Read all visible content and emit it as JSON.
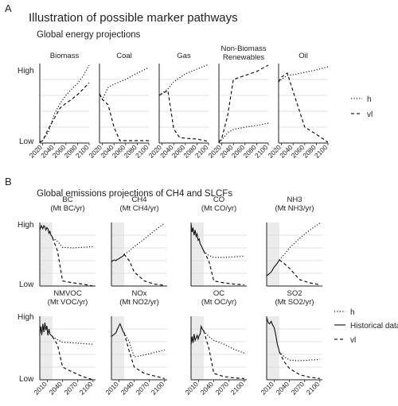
{
  "panel_a": {
    "letter": "A",
    "title": "Illustration of possible marker pathways",
    "subtitle": "Global energy projections",
    "y_high": "High",
    "y_low": "Low",
    "x_ticks": [
      "2020",
      "2040",
      "2060",
      "2080",
      "2100"
    ]
  },
  "panel_b": {
    "letter": "B",
    "subtitle": "Global emissions projections of CH4 and SLCFs",
    "y_high": "High",
    "y_low": "Low",
    "x_ticks": [
      "2010",
      "2040",
      "2070",
      "2100"
    ]
  },
  "legend_a": {
    "items": [
      {
        "label": "h",
        "style": "dotted"
      },
      {
        "label": "vl",
        "style": "dashed"
      }
    ]
  },
  "legend_b": {
    "items": [
      {
        "label": "h",
        "style": "dotted"
      },
      {
        "label": "Historical data",
        "style": "solid"
      },
      {
        "label": "vl",
        "style": "dashed"
      }
    ]
  },
  "chart_data": [
    {
      "type": "line",
      "title": "Biomass",
      "ylabel": "",
      "x_range": [
        2015,
        2100
      ],
      "y_range": [
        "Low",
        "High"
      ],
      "series": [
        {
          "name": "h",
          "style": "dotted",
          "x": [
            2015,
            2020,
            2030,
            2040,
            2050,
            2060,
            2070,
            2080,
            2090,
            2100
          ],
          "y": [
            0.02,
            0.03,
            0.14,
            0.36,
            0.5,
            0.6,
            0.68,
            0.75,
            0.85,
            0.98
          ]
        },
        {
          "name": "vl",
          "style": "dashed",
          "x": [
            2015,
            2020,
            2030,
            2040,
            2050,
            2060,
            2070,
            2080,
            2090,
            2100
          ],
          "y": [
            0.01,
            0.03,
            0.18,
            0.31,
            0.44,
            0.5,
            0.55,
            0.61,
            0.68,
            0.76
          ]
        }
      ]
    },
    {
      "type": "line",
      "title": "Coal",
      "ylabel": "",
      "x_range": [
        2015,
        2100
      ],
      "y_range": [
        "Low",
        "High"
      ],
      "series": [
        {
          "name": "h",
          "style": "dotted",
          "x": [
            2015,
            2020,
            2030,
            2040,
            2060,
            2080,
            2100
          ],
          "y": [
            0.62,
            0.55,
            0.7,
            0.74,
            0.8,
            0.88,
            0.95
          ]
        },
        {
          "name": "vl",
          "style": "dashed",
          "x": [
            2015,
            2020,
            2030,
            2040,
            2050,
            2060,
            2080,
            2100
          ],
          "y": [
            0.62,
            0.55,
            0.48,
            0.2,
            0.03,
            0.03,
            0.03,
            0.03
          ]
        }
      ]
    },
    {
      "type": "line",
      "title": "Gas",
      "ylabel": "",
      "x_range": [
        2015,
        2100
      ],
      "y_range": [
        "Low",
        "High"
      ],
      "series": [
        {
          "name": "h",
          "style": "dotted",
          "x": [
            2015,
            2020,
            2030,
            2040,
            2060,
            2080,
            2100
          ],
          "y": [
            0.6,
            0.63,
            0.68,
            0.77,
            0.87,
            0.93,
            0.99
          ]
        },
        {
          "name": "vl",
          "style": "dashed",
          "x": [
            2015,
            2020,
            2030,
            2040,
            2050,
            2060,
            2080,
            2100
          ],
          "y": [
            0.6,
            0.62,
            0.66,
            0.18,
            0.07,
            0.06,
            0.05,
            0.02
          ]
        }
      ]
    },
    {
      "type": "line",
      "title": "Non-Biomass\nRenewables",
      "ylabel": "",
      "x_range": [
        2015,
        2100
      ],
      "y_range": [
        "Low",
        "High"
      ],
      "series": [
        {
          "name": "h",
          "style": "dotted",
          "x": [
            2015,
            2020,
            2030,
            2040,
            2060,
            2080,
            2100
          ],
          "y": [
            0.01,
            0.04,
            0.13,
            0.17,
            0.2,
            0.22,
            0.25
          ]
        },
        {
          "name": "vl",
          "style": "dashed",
          "x": [
            2015,
            2020,
            2030,
            2040,
            2060,
            2080,
            2100
          ],
          "y": [
            0.01,
            0.06,
            0.34,
            0.8,
            0.85,
            0.9,
            0.98
          ]
        }
      ]
    },
    {
      "type": "line",
      "title": "Oil",
      "ylabel": "",
      "x_range": [
        2015,
        2100
      ],
      "y_range": [
        "Low",
        "High"
      ],
      "series": [
        {
          "name": "h",
          "style": "dotted",
          "x": [
            2015,
            2020,
            2030,
            2040,
            2060,
            2080,
            2100
          ],
          "y": [
            0.77,
            0.8,
            0.85,
            0.86,
            0.89,
            0.92,
            0.96
          ]
        },
        {
          "name": "vl",
          "style": "dashed",
          "x": [
            2015,
            2020,
            2030,
            2040,
            2060,
            2080,
            2100
          ],
          "y": [
            0.77,
            0.83,
            0.88,
            0.65,
            0.2,
            0.11,
            0.01
          ]
        }
      ]
    },
    {
      "type": "line",
      "title": "BC\n(Mt BC/yr)",
      "ylabel": "",
      "x_range": [
        1995,
        2105
      ],
      "y_range": [
        "Low",
        "High"
      ],
      "historical_period": [
        1995,
        2020
      ],
      "series": [
        {
          "name": "Historical data",
          "style": "solid",
          "x": [
            1995,
            1998,
            2001,
            2003,
            2005,
            2007,
            2009,
            2011,
            2013,
            2015,
            2017,
            2019,
            2020
          ],
          "y": [
            0.88,
            0.95,
            0.9,
            0.95,
            0.93,
            0.88,
            0.92,
            0.9,
            0.83,
            0.86,
            0.8,
            0.78,
            0.76
          ]
        },
        {
          "name": "h",
          "style": "dotted",
          "x": [
            2020,
            2030,
            2040,
            2060,
            2080,
            2100
          ],
          "y": [
            0.76,
            0.7,
            0.61,
            0.6,
            0.61,
            0.62
          ]
        },
        {
          "name": "vl",
          "style": "dashed",
          "x": [
            2020,
            2030,
            2040,
            2060,
            2080,
            2100
          ],
          "y": [
            0.76,
            0.55,
            0.08,
            0.05,
            0.03,
            0.0
          ]
        }
      ]
    },
    {
      "type": "line",
      "title": "CH4\n(Mt CH4/yr)",
      "ylabel": "",
      "x_range": [
        1995,
        2105
      ],
      "y_range": [
        "Low",
        "High"
      ],
      "historical_period": [
        1995,
        2020
      ],
      "series": [
        {
          "name": "Historical data",
          "style": "solid",
          "x": [
            1995,
            1998,
            2001,
            2004,
            2007,
            2010,
            2013,
            2016,
            2019,
            2020
          ],
          "y": [
            0.38,
            0.4,
            0.41,
            0.4,
            0.42,
            0.43,
            0.45,
            0.46,
            0.48,
            0.5
          ]
        },
        {
          "name": "h",
          "style": "dotted",
          "x": [
            2020,
            2030,
            2040,
            2060,
            2080,
            2100
          ],
          "y": [
            0.5,
            0.55,
            0.62,
            0.74,
            0.87,
            0.99
          ]
        },
        {
          "name": "vl",
          "style": "dashed",
          "x": [
            2020,
            2030,
            2040,
            2060,
            2080,
            2100
          ],
          "y": [
            0.5,
            0.4,
            0.22,
            0.08,
            0.03,
            0.01
          ]
        }
      ]
    },
    {
      "type": "line",
      "title": "CO\n(Mt CO/yr)",
      "ylabel": "",
      "x_range": [
        1995,
        2105
      ],
      "y_range": [
        "Low",
        "High"
      ],
      "historical_period": [
        1995,
        2020
      ],
      "series": [
        {
          "name": "Historical data",
          "style": "solid",
          "x": [
            1995,
            1997,
            1999,
            2001,
            2003,
            2005,
            2007,
            2009,
            2011,
            2013,
            2015,
            2017,
            2019,
            2020
          ],
          "y": [
            0.98,
            0.85,
            0.92,
            0.8,
            0.88,
            0.78,
            0.82,
            0.72,
            0.74,
            0.66,
            0.64,
            0.6,
            0.57,
            0.55
          ]
        },
        {
          "name": "h",
          "style": "dotted",
          "x": [
            2020,
            2030,
            2040,
            2060,
            2080,
            2100
          ],
          "y": [
            0.55,
            0.48,
            0.45,
            0.45,
            0.46,
            0.47
          ]
        },
        {
          "name": "vl",
          "style": "dashed",
          "x": [
            2020,
            2030,
            2040,
            2060,
            2080,
            2100
          ],
          "y": [
            0.55,
            0.4,
            0.08,
            0.05,
            0.03,
            0.02
          ]
        }
      ]
    },
    {
      "type": "line",
      "title": "NH3\n(Mt NH3/yr)",
      "ylabel": "",
      "x_range": [
        1995,
        2105
      ],
      "y_range": [
        "Low",
        "High"
      ],
      "historical_period": [
        1995,
        2020
      ],
      "series": [
        {
          "name": "Historical data",
          "style": "solid",
          "x": [
            1995,
            1998,
            2001,
            2004,
            2007,
            2010,
            2013,
            2016,
            2019,
            2020
          ],
          "y": [
            0.16,
            0.18,
            0.2,
            0.22,
            0.26,
            0.3,
            0.33,
            0.36,
            0.4,
            0.41
          ]
        },
        {
          "name": "h",
          "style": "dotted",
          "x": [
            2020,
            2030,
            2040,
            2060,
            2080,
            2100
          ],
          "y": [
            0.41,
            0.5,
            0.6,
            0.75,
            0.88,
            0.99
          ]
        },
        {
          "name": "vl",
          "style": "dashed",
          "x": [
            2020,
            2030,
            2040,
            2060,
            2080,
            2100
          ],
          "y": [
            0.41,
            0.35,
            0.28,
            0.1,
            0.05,
            0.02
          ]
        }
      ]
    },
    {
      "type": "line",
      "title": "NMVOC\n(Mt VOC/yr)",
      "ylabel": "",
      "x_range": [
        1995,
        2105
      ],
      "y_range": [
        "Low",
        "High"
      ],
      "historical_period": [
        1995,
        2020
      ],
      "series": [
        {
          "name": "Historical data",
          "style": "solid",
          "x": [
            1995,
            1997,
            1999,
            2001,
            2003,
            2005,
            2007,
            2009,
            2011,
            2013,
            2015,
            2017,
            2019,
            2020
          ],
          "y": [
            0.72,
            0.84,
            0.7,
            0.88,
            0.75,
            0.9,
            0.78,
            0.85,
            0.7,
            0.8,
            0.72,
            0.7,
            0.69,
            0.68
          ]
        },
        {
          "name": "h",
          "style": "dotted",
          "x": [
            2020,
            2030,
            2040,
            2060,
            2080,
            2100
          ],
          "y": [
            0.68,
            0.63,
            0.59,
            0.58,
            0.57,
            0.56
          ]
        },
        {
          "name": "vl",
          "style": "dashed",
          "x": [
            2020,
            2030,
            2040,
            2060,
            2080,
            2100
          ],
          "y": [
            0.68,
            0.55,
            0.2,
            0.12,
            0.05,
            0.0
          ]
        }
      ]
    },
    {
      "type": "line",
      "title": "NOx\n(Mt NO2/yr)",
      "ylabel": "",
      "x_range": [
        1995,
        2105
      ],
      "y_range": [
        "Low",
        "High"
      ],
      "historical_period": [
        1995,
        2020
      ],
      "series": [
        {
          "name": "Historical data",
          "style": "solid",
          "x": [
            1995,
            1998,
            2001,
            2004,
            2007,
            2010,
            2012,
            2014,
            2016,
            2018,
            2020
          ],
          "y": [
            0.68,
            0.7,
            0.72,
            0.74,
            0.8,
            0.85,
            0.88,
            0.84,
            0.8,
            0.76,
            0.74
          ]
        },
        {
          "name": "h",
          "style": "dotted",
          "x": [
            2020,
            2030,
            2040,
            2060,
            2080,
            2100
          ],
          "y": [
            0.74,
            0.6,
            0.36,
            0.39,
            0.43,
            0.47
          ]
        },
        {
          "name": "vl",
          "style": "dashed",
          "x": [
            2020,
            2030,
            2040,
            2060,
            2080,
            2100
          ],
          "y": [
            0.74,
            0.45,
            0.2,
            0.1,
            0.06,
            0.02
          ]
        }
      ]
    },
    {
      "type": "line",
      "title": "OC\n(Mt OC/yr)",
      "ylabel": "",
      "x_range": [
        1995,
        2105
      ],
      "y_range": [
        "Low",
        "High"
      ],
      "historical_period": [
        1995,
        2020
      ],
      "series": [
        {
          "name": "Historical data",
          "style": "solid",
          "x": [
            1995,
            1997,
            1999,
            2001,
            2003,
            2005,
            2007,
            2009,
            2011,
            2013,
            2015,
            2017,
            2019,
            2020
          ],
          "y": [
            0.55,
            0.68,
            0.58,
            0.72,
            0.62,
            0.66,
            0.7,
            0.64,
            0.7,
            0.72,
            0.84,
            0.8,
            0.78,
            0.77
          ]
        },
        {
          "name": "h",
          "style": "dotted",
          "x": [
            2020,
            2030,
            2040,
            2060,
            2080,
            2100
          ],
          "y": [
            0.77,
            0.68,
            0.62,
            0.56,
            0.48,
            0.42
          ]
        },
        {
          "name": "vl",
          "style": "dashed",
          "x": [
            2020,
            2030,
            2040,
            2060,
            2080,
            2100
          ],
          "y": [
            0.77,
            0.5,
            0.1,
            0.05,
            0.03,
            0.02
          ]
        }
      ]
    },
    {
      "type": "line",
      "title": "SO2\n(Mt SO2/yr)",
      "ylabel": "",
      "x_range": [
        1995,
        2105
      ],
      "y_range": [
        "Low",
        "High"
      ],
      "historical_period": [
        1995,
        2020
      ],
      "series": [
        {
          "name": "Historical data",
          "style": "solid",
          "x": [
            1995,
            1998,
            2001,
            2004,
            2007,
            2010,
            2013,
            2016,
            2019,
            2020
          ],
          "y": [
            0.98,
            0.9,
            0.88,
            0.92,
            0.86,
            0.82,
            0.7,
            0.56,
            0.48,
            0.44
          ]
        },
        {
          "name": "h",
          "style": "dotted",
          "x": [
            2020,
            2030,
            2040,
            2060,
            2080,
            2100
          ],
          "y": [
            0.44,
            0.36,
            0.31,
            0.3,
            0.31,
            0.32
          ]
        },
        {
          "name": "vl",
          "style": "dashed",
          "x": [
            2020,
            2030,
            2040,
            2060,
            2080,
            2100
          ],
          "y": [
            0.44,
            0.28,
            0.18,
            0.08,
            0.04,
            0.02
          ]
        }
      ]
    }
  ]
}
